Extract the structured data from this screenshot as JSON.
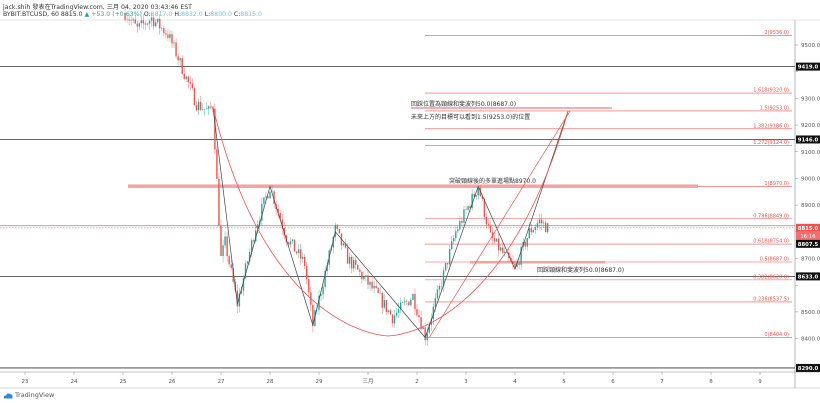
{
  "header": {
    "line1": "jack.shih 發表在TradingView.com, 三月 04, 2020 03:43:46 EST",
    "symbol": "BYBIT:BTCUSD, 60",
    "last": "8815.0",
    "change": "▲ +53.0 (+0.63%)",
    "open_label": "O:",
    "open": "8817.0",
    "high_label": "H:",
    "high": "8832.0",
    "low_label": "L:",
    "low": "8800.0",
    "close_label": "C:",
    "close": "8815.0"
  },
  "footer": {
    "logo_text": "TradingView",
    "logo_icon": "tradingview-cloud-icon"
  },
  "colors": {
    "up": "#26a69a",
    "down": "#ef5350",
    "fib": "#ef5350",
    "level": "#333333",
    "zone": "#f4a3a3"
  },
  "annotations": {
    "neckline_retest_top": "回踩位置為頸線和斐波列50.0(8687.0)",
    "target": "未來上方的目標可以看到1.5(9253.0)的位置",
    "entry": "突破頸線後的多單進場點8970.0",
    "neckline_retest_bottom": "回踩頸線和斐波列50.0(8687.0)"
  },
  "chart_data": {
    "type": "candlestick",
    "symbol": "BYBIT:BTCUSD",
    "interval": "60",
    "x_tick_labels": [
      "23",
      "24",
      "25",
      "26",
      "27",
      "28",
      "29",
      "三月",
      "2",
      "3",
      "4",
      "5",
      "6",
      "7",
      "8",
      "9"
    ],
    "y_ticks": [
      9500,
      9400,
      9300,
      9200,
      9100,
      9000,
      8900,
      8800,
      8700,
      8600,
      8500,
      8400,
      8300
    ],
    "ylim": [
      8260,
      9600
    ],
    "price_path": [
      [
        "02-25 01:00",
        9620
      ],
      [
        "02-25 07:00",
        9560
      ],
      [
        "02-25 14:00",
        9600
      ],
      [
        "02-25 22:00",
        9540
      ],
      [
        "02-26 02:00",
        9470
      ],
      [
        "02-26 12:00",
        9280
      ],
      [
        "02-26 18:00",
        9250
      ],
      [
        "02-26 20:00",
        9275
      ],
      [
        "02-27 00:00",
        8700
      ],
      [
        "02-27 02:00",
        8760
      ],
      [
        "02-27 08:00",
        8530
      ],
      [
        "02-27 17:00",
        8820
      ],
      [
        "02-28 00:00",
        8970
      ],
      [
        "02-28 08:00",
        8780
      ],
      [
        "02-28 17:00",
        8680
      ],
      [
        "02-28 21:00",
        8450
      ],
      [
        "02-29 08:00",
        8810
      ],
      [
        "02-29 14:00",
        8700
      ],
      [
        "03-01 05:00",
        8560
      ],
      [
        "03-01 12:00",
        8480
      ],
      [
        "03-01 22:00",
        8560
      ],
      [
        "03-02 04:00",
        8410
      ],
      [
        "03-02 10:00",
        8560
      ],
      [
        "03-02 19:00",
        8800
      ],
      [
        "03-03 06:00",
        8970
      ],
      [
        "03-03 12:00",
        8780
      ],
      [
        "03-04 00:00",
        8660
      ],
      [
        "03-04 07:00",
        8800
      ],
      [
        "03-04 12:00",
        8840
      ],
      [
        "03-04 16:00",
        8815
      ]
    ],
    "horizontal_levels": [
      9419.0,
      9146.0,
      8633.0,
      8290.0
    ],
    "last_price": 8815.0,
    "countdown": "16:16",
    "secondary_price": 8807.5,
    "fib_levels": [
      {
        "ratio": "2",
        "price": 9536.0
      },
      {
        "ratio": "1.618",
        "price": 9320.0
      },
      {
        "ratio": "1.5",
        "price": 9253.0
      },
      {
        "ratio": "1.382",
        "price": 9186.0
      },
      {
        "ratio": "1.272",
        "price": 9124.0
      },
      {
        "ratio": "1",
        "price": 8970.0
      },
      {
        "ratio": "0.786",
        "price": 8849.0
      },
      {
        "ratio": "0.618",
        "price": 8754.0
      },
      {
        "ratio": "0.5",
        "price": 8687.0
      },
      {
        "ratio": "0.382",
        "price": 8620.0
      },
      {
        "ratio": "0.236",
        "price": 8537.5
      },
      {
        "ratio": "0",
        "price": 8404.0
      }
    ],
    "zigzag": [
      [
        "02-26 20:00",
        9270
      ],
      [
        "02-27 08:00",
        8530
      ],
      [
        "02-28 00:00",
        8970
      ],
      [
        "02-28 21:00",
        8450
      ],
      [
        "02-29 08:00",
        8800
      ],
      [
        "03-02 04:00",
        8404
      ],
      [
        "03-03 06:00",
        8970
      ],
      [
        "03-04 00:00",
        8660
      ],
      [
        "03-05 02:00",
        9253
      ]
    ],
    "cup_curve": [
      [
        "02-26 20:00",
        9270
      ],
      [
        "02-27 23:00",
        8410
      ],
      [
        "03-01 10:00",
        8410
      ],
      [
        "03-03 19:00",
        8410
      ],
      [
        "03-05 02:00",
        9253
      ]
    ]
  }
}
